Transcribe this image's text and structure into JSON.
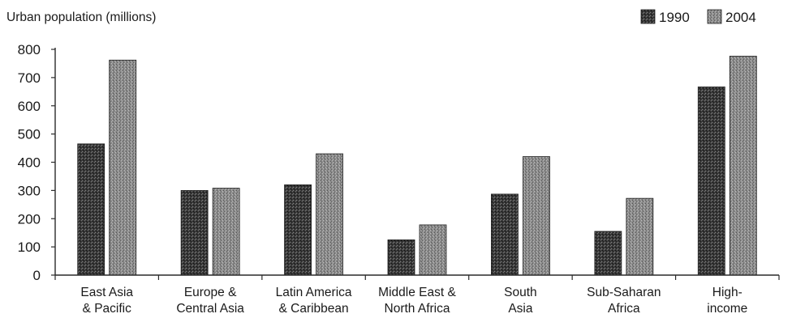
{
  "chart_data": {
    "type": "bar",
    "ylabel": "Urban population (millions)",
    "xlabel": "",
    "ylim": [
      0,
      800
    ],
    "yticks": [
      0,
      100,
      200,
      300,
      400,
      500,
      600,
      700,
      800
    ],
    "grid": false,
    "legend_position": "top-right",
    "categories": [
      [
        "East Asia",
        "& Pacific"
      ],
      [
        "Europe &",
        "Central Asia"
      ],
      [
        "Latin America",
        "& Caribbean"
      ],
      [
        "Middle East &",
        "North Africa"
      ],
      [
        "South",
        "Asia"
      ],
      [
        "Sub-Saharan",
        "Africa"
      ],
      [
        "High-",
        "income"
      ]
    ],
    "series": [
      {
        "name": "1990",
        "color": "#3a3a3a",
        "values": [
          465,
          300,
          320,
          125,
          287,
          155,
          667
        ]
      },
      {
        "name": "2004",
        "color": "#8c8c8c",
        "values": [
          762,
          308,
          430,
          178,
          420,
          272,
          776
        ]
      }
    ]
  }
}
